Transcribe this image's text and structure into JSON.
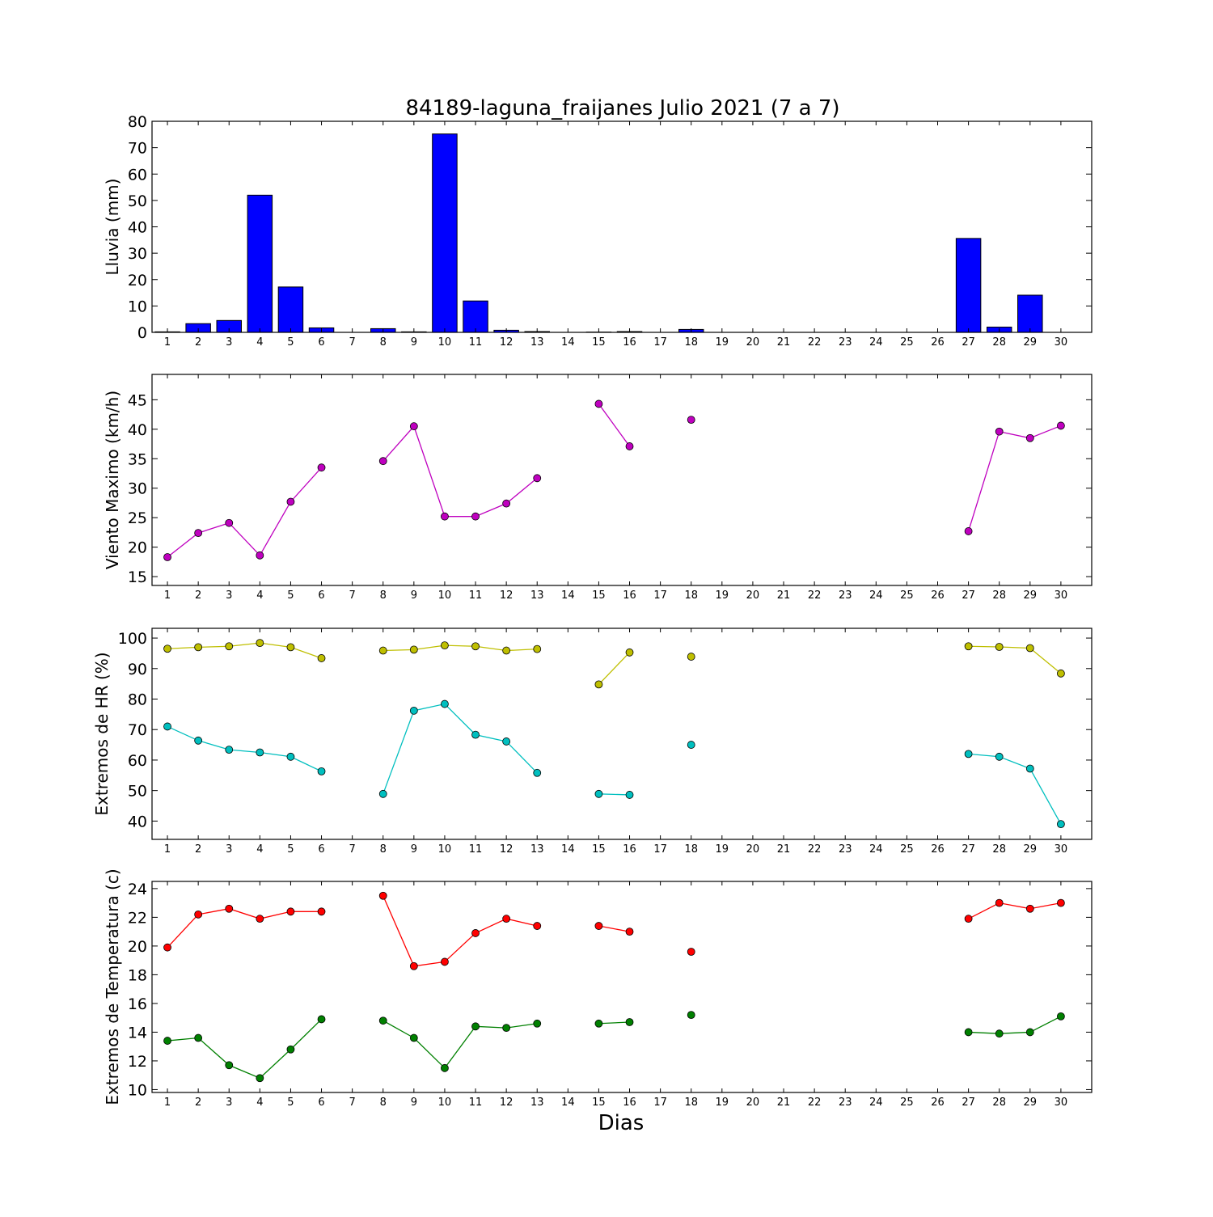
{
  "chart_data": {
    "type": "multi-panel",
    "title": "84189-laguna_fraijanes Julio 2021  (7 a 7)",
    "xlabel": "Dias",
    "days": [
      1,
      2,
      3,
      4,
      5,
      6,
      7,
      8,
      9,
      10,
      11,
      12,
      13,
      14,
      15,
      16,
      17,
      18,
      19,
      20,
      21,
      22,
      23,
      24,
      25,
      26,
      27,
      28,
      29,
      30
    ],
    "panels": [
      {
        "type": "bar",
        "ylabel": "Lluvia (mm)",
        "ylim": [
          0,
          80
        ],
        "yticks": [
          0,
          10,
          20,
          30,
          40,
          50,
          60,
          70,
          80
        ],
        "color": "#0000ff",
        "values": [
          0.2,
          3.3,
          4.5,
          52,
          17.2,
          1.7,
          null,
          1.4,
          0.2,
          75.2,
          11.9,
          0.8,
          0.3,
          null,
          0.1,
          0.3,
          null,
          1.1,
          null,
          null,
          null,
          null,
          null,
          null,
          null,
          null,
          35.6,
          2.0,
          14.1,
          null
        ]
      },
      {
        "type": "line",
        "ylabel": "Viento Maximo (km/h)",
        "ylim": [
          13.5,
          49.3
        ],
        "yticks": [
          15,
          20,
          25,
          30,
          35,
          40,
          45
        ],
        "series": [
          {
            "color": "#bf00bf",
            "values": [
              18.3,
              22.4,
              24.1,
              18.6,
              27.7,
              33.5,
              null,
              34.6,
              40.5,
              25.2,
              25.2,
              27.4,
              31.7,
              null,
              44.3,
              37.1,
              null,
              41.6,
              null,
              null,
              null,
              null,
              null,
              null,
              null,
              null,
              22.7,
              39.6,
              38.5,
              40.6
            ]
          }
        ]
      },
      {
        "type": "line",
        "ylabel": "Extremos de HR (%)",
        "ylim": [
          34,
          103.2
        ],
        "yticks": [
          40,
          50,
          60,
          70,
          80,
          90,
          100
        ],
        "series": [
          {
            "color": "#bfbf00",
            "values": [
              96.5,
              97.0,
              97.3,
              98.4,
              97.0,
              93.4,
              null,
              95.9,
              96.2,
              97.6,
              97.3,
              95.9,
              96.4,
              null,
              84.8,
              95.3,
              null,
              93.9,
              null,
              null,
              null,
              null,
              null,
              null,
              null,
              null,
              97.3,
              97.1,
              96.7,
              88.4
            ]
          },
          {
            "color": "#00bfbf",
            "values": [
              71.0,
              66.4,
              63.4,
              62.5,
              61.1,
              56.3,
              null,
              48.9,
              76.2,
              78.4,
              68.3,
              66.1,
              55.8,
              null,
              48.9,
              48.6,
              null,
              65.0,
              null,
              null,
              null,
              null,
              null,
              null,
              null,
              null,
              62.0,
              61.1,
              57.2,
              39.0
            ]
          }
        ]
      },
      {
        "type": "line",
        "ylabel": "Extremos de Temperatura (c)",
        "ylim": [
          9.8,
          24.5
        ],
        "yticks": [
          10,
          12,
          14,
          16,
          18,
          20,
          22,
          24
        ],
        "series": [
          {
            "color": "#ff0000",
            "values": [
              19.9,
              22.2,
              22.6,
              21.9,
              22.4,
              22.4,
              null,
              23.5,
              18.6,
              18.9,
              20.9,
              21.9,
              21.4,
              null,
              21.4,
              21.0,
              null,
              19.6,
              null,
              null,
              null,
              null,
              null,
              null,
              null,
              null,
              21.9,
              23.0,
              22.6,
              23.0
            ]
          },
          {
            "color": "#008000",
            "values": [
              13.4,
              13.6,
              11.7,
              10.8,
              12.8,
              14.9,
              null,
              14.8,
              13.6,
              11.5,
              14.4,
              14.3,
              14.6,
              null,
              14.6,
              14.7,
              null,
              15.2,
              null,
              null,
              null,
              null,
              null,
              null,
              null,
              null,
              14.0,
              13.9,
              14.0,
              15.1
            ]
          }
        ]
      }
    ]
  }
}
